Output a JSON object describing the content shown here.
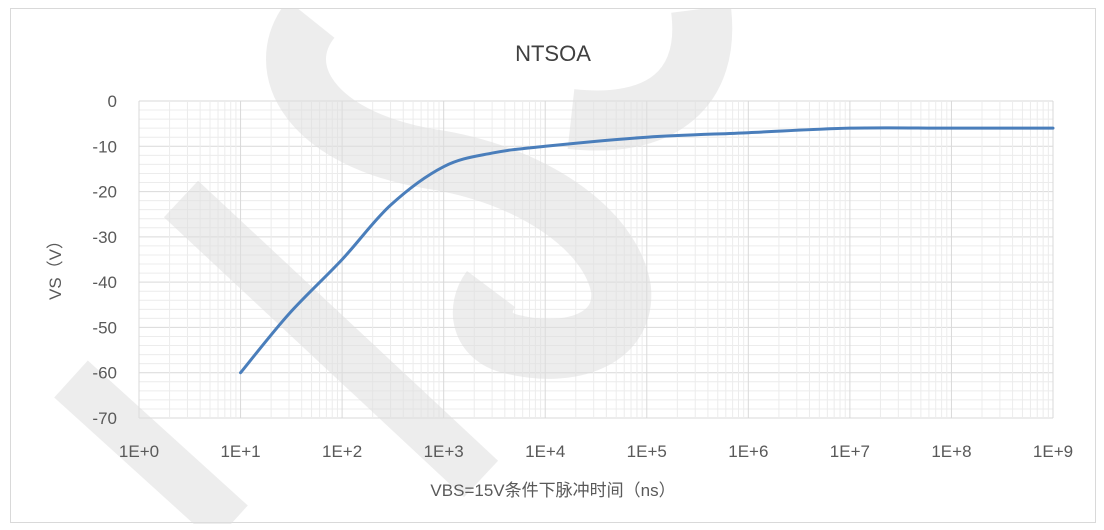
{
  "chart_data": {
    "type": "line",
    "title": "NTSOA",
    "xlabel": "VBS=15V条件下脉冲时间（ns）",
    "ylabel": "VS（V）",
    "x_scale": "log",
    "xlim": [
      1,
      1000000000
    ],
    "ylim": [
      -70,
      0
    ],
    "x_ticks": [
      "1E+0",
      "1E+1",
      "1E+2",
      "1E+3",
      "1E+4",
      "1E+5",
      "1E+6",
      "1E+7",
      "1E+8",
      "1E+9"
    ],
    "y_ticks": [
      "0",
      "-10",
      "-20",
      "-30",
      "-40",
      "-50",
      "-60",
      "-70"
    ],
    "grid": true,
    "series": [
      {
        "color": "#4a7ebb",
        "points": [
          {
            "x": 10,
            "y": -60
          },
          {
            "x": 30,
            "y": -47
          },
          {
            "x": 100,
            "y": -35
          },
          {
            "x": 300,
            "y": -23
          },
          {
            "x": 1000,
            "y": -14.5
          },
          {
            "x": 3000,
            "y": -11.5
          },
          {
            "x": 10000,
            "y": -10
          },
          {
            "x": 100000,
            "y": -8
          },
          {
            "x": 1000000,
            "y": -7
          },
          {
            "x": 10000000,
            "y": -6
          },
          {
            "x": 100000000,
            "y": -6
          },
          {
            "x": 1000000000,
            "y": -6
          }
        ]
      }
    ]
  }
}
